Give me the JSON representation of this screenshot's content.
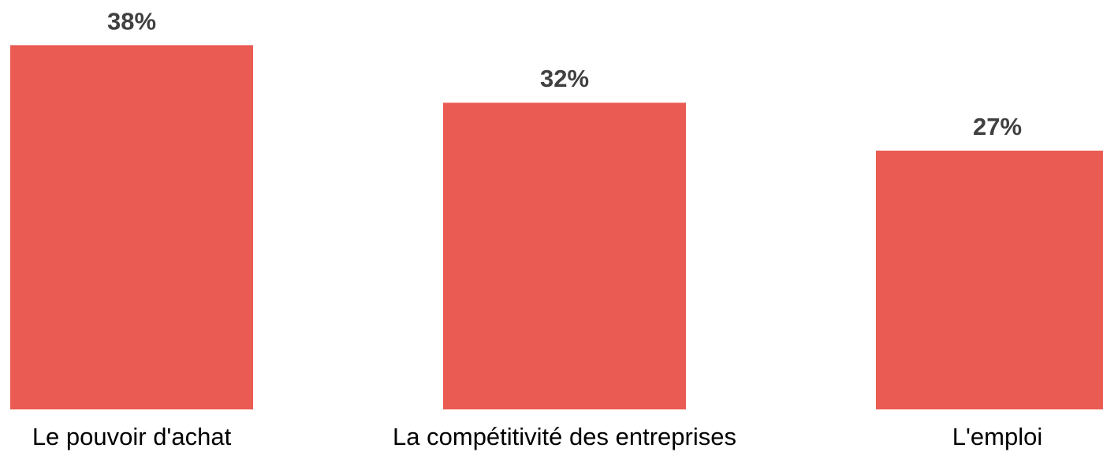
{
  "chart_data": {
    "type": "bar",
    "categories": [
      "Le pouvoir d'achat",
      "La compétitivité des entreprises",
      "L'emploi"
    ],
    "values": [
      38,
      32,
      27
    ],
    "value_labels": [
      "38%",
      "32%",
      "27%"
    ],
    "unit": "%",
    "ylim": [
      0,
      40
    ],
    "grid": false,
    "legend": "none",
    "bar_color": "#E95B53",
    "value_label_color": "#404040",
    "category_label_color": "#000000"
  }
}
